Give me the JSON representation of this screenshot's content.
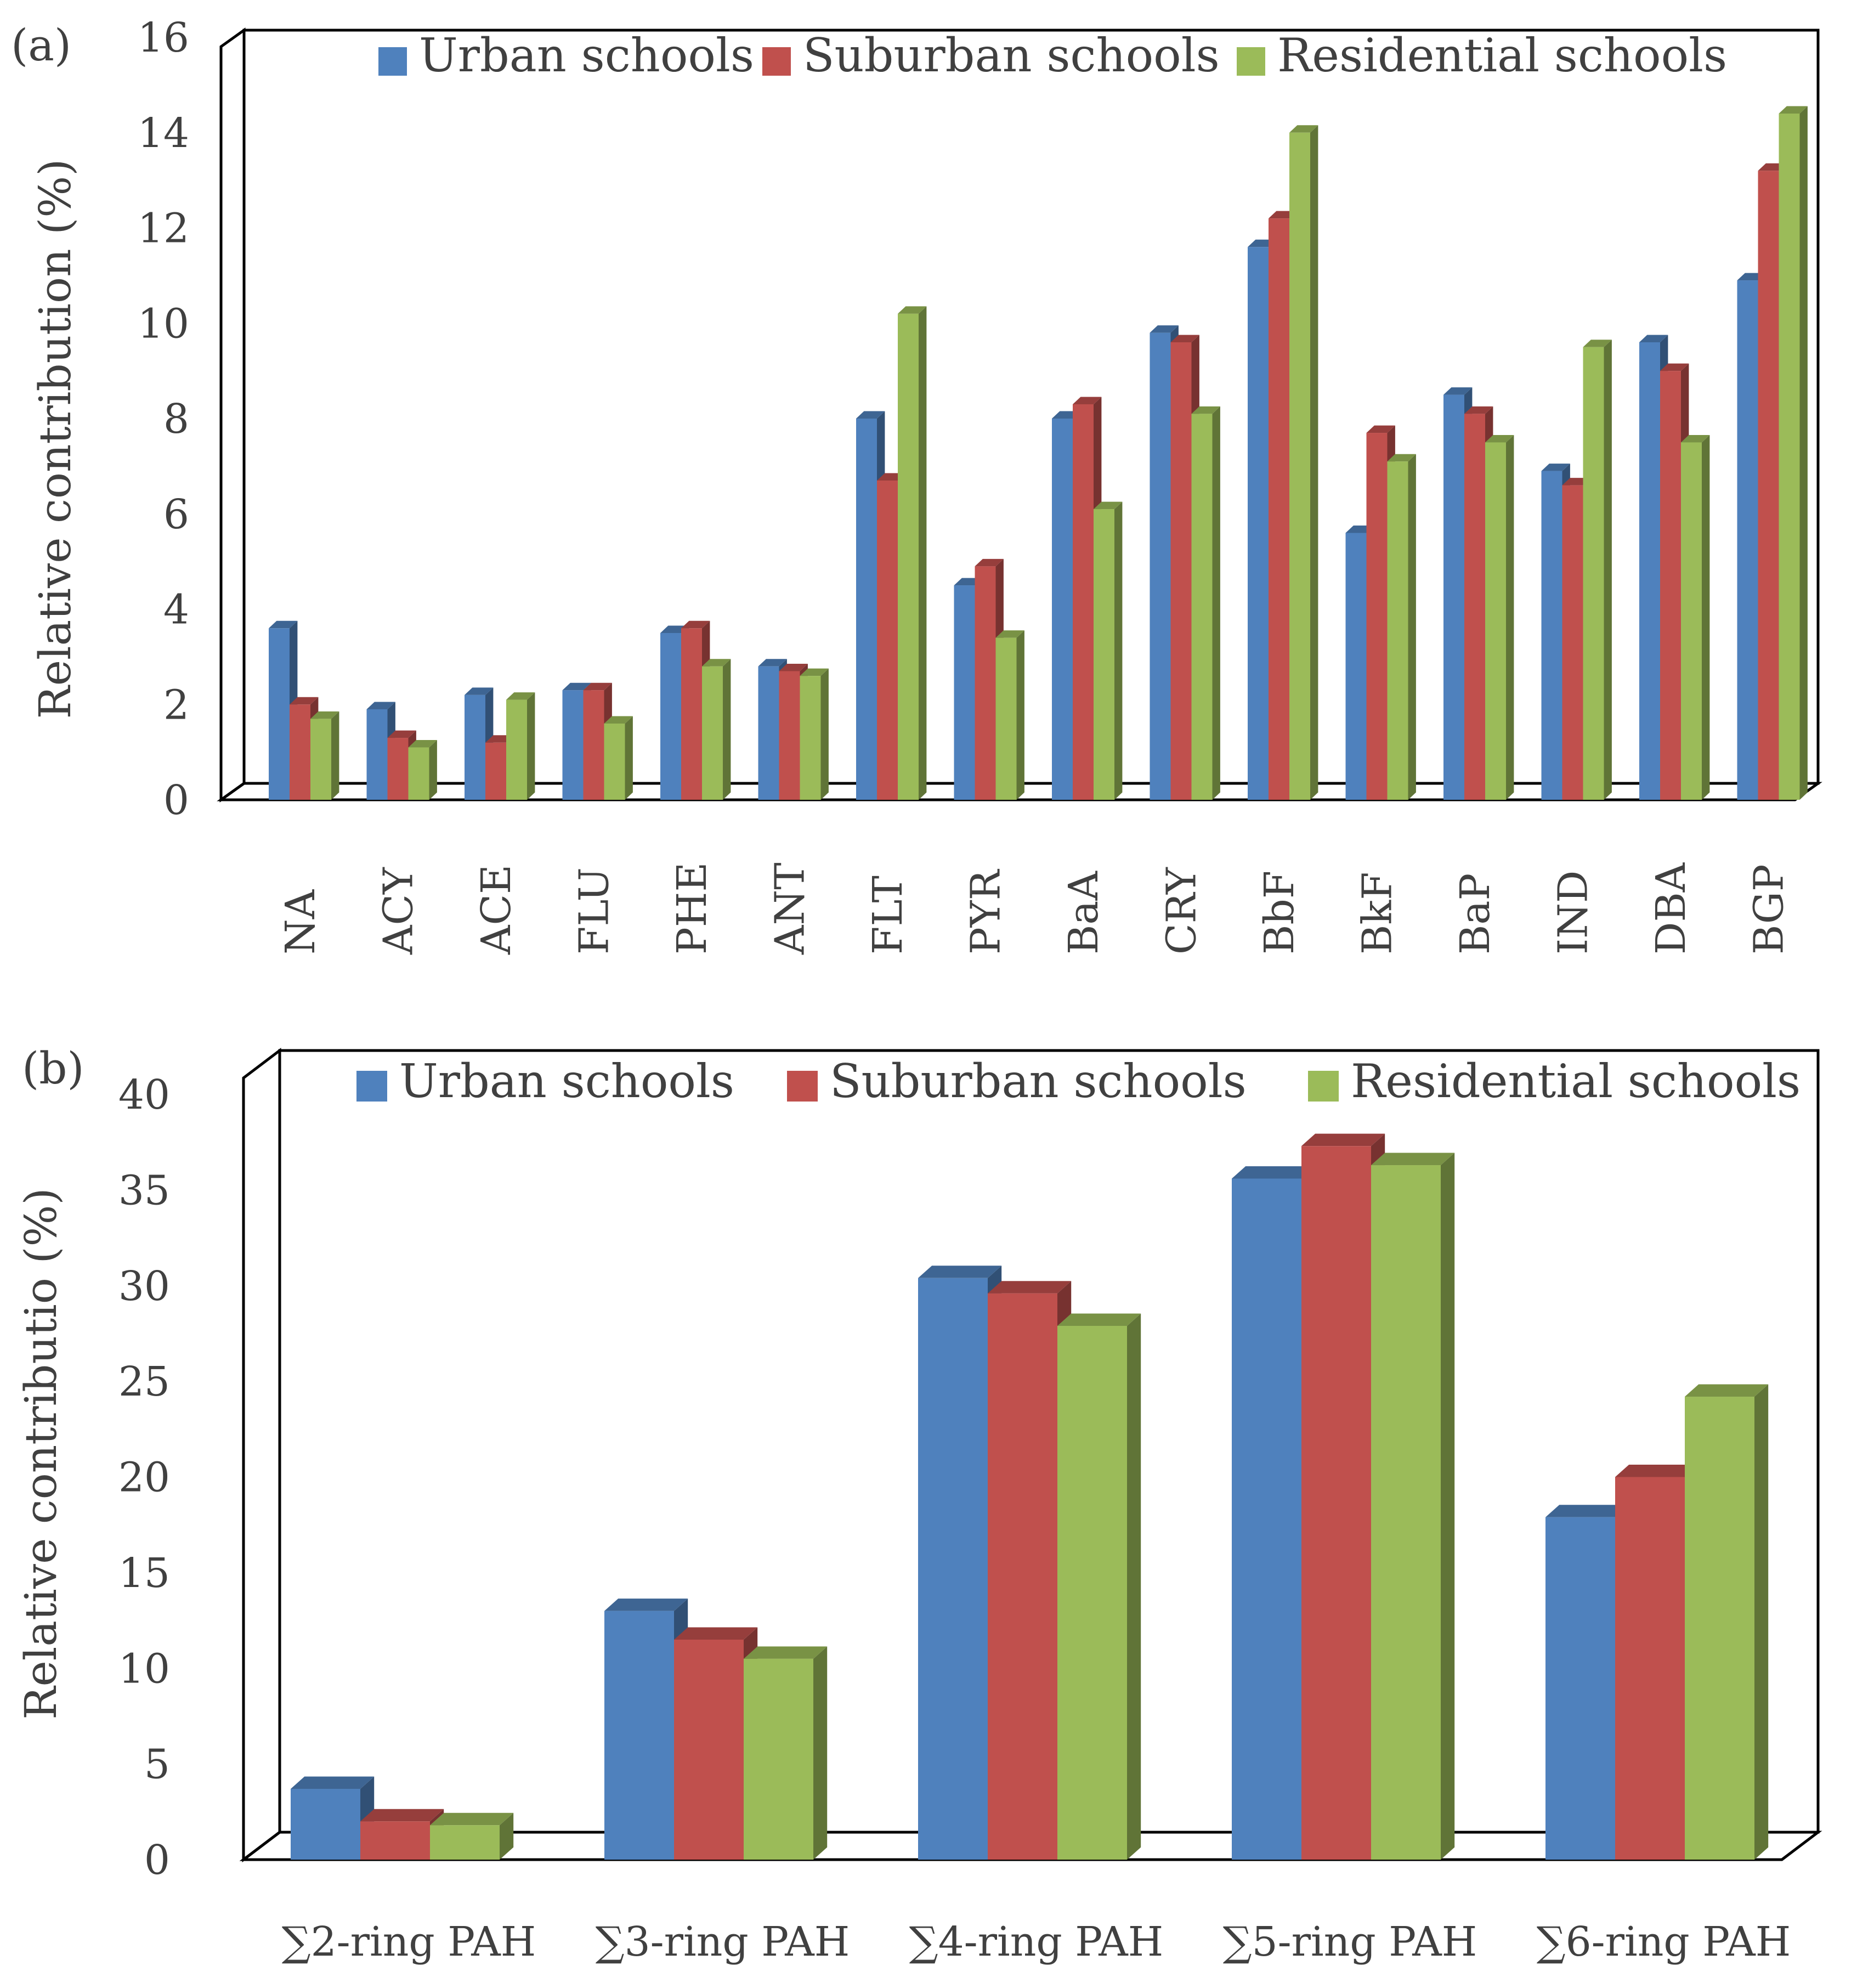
{
  "chart_data": [
    {
      "panel_label": "(a)",
      "type": "bar",
      "style": "3d-clustered",
      "ylabel": "Relative contribution (%)",
      "ylim": [
        0,
        16
      ],
      "yticks": [
        0,
        2,
        4,
        6,
        8,
        10,
        12,
        14,
        16
      ],
      "categories": [
        "NA",
        "ACY",
        "ACE",
        "FLU",
        "PHE",
        "ANT",
        "FLT",
        "PYR",
        "BaA",
        "CRY",
        "BbF",
        "BkF",
        "BaP",
        "IND",
        "DBA",
        "BGP"
      ],
      "legend_position": "top",
      "series": [
        {
          "name": "Urban schools",
          "color": "#4F81BD",
          "values": [
            3.6,
            1.9,
            2.2,
            2.3,
            3.5,
            2.8,
            8.0,
            4.5,
            8.0,
            9.8,
            11.6,
            5.6,
            8.5,
            6.9,
            9.6,
            10.9
          ]
        },
        {
          "name": "Suburban  schools",
          "color": "#C0504D",
          "values": [
            2.0,
            1.3,
            1.2,
            2.3,
            3.6,
            2.7,
            6.7,
            4.9,
            8.3,
            9.6,
            12.2,
            7.7,
            8.1,
            6.6,
            9.0,
            13.2
          ]
        },
        {
          "name": "Residential schools",
          "color": "#9BBB59",
          "values": [
            1.7,
            1.1,
            2.1,
            1.6,
            2.8,
            2.6,
            10.2,
            3.4,
            6.1,
            8.1,
            14.0,
            7.1,
            7.5,
            9.5,
            7.5,
            14.4
          ]
        }
      ]
    },
    {
      "panel_label": "(b)",
      "type": "bar",
      "style": "3d-clustered",
      "ylabel": "Relative contributio (%)",
      "ylim": [
        0,
        40
      ],
      "yticks": [
        0,
        5,
        10,
        15,
        20,
        25,
        30,
        35,
        40
      ],
      "categories": [
        "∑2-ring PAH",
        "∑3-ring PAH",
        "∑4-ring PAH",
        "∑5-ring PAH",
        "∑6-ring PAH"
      ],
      "legend_position": "top",
      "series": [
        {
          "name": "Urban schools",
          "color": "#4F81BD",
          "values": [
            3.7,
            13.0,
            30.4,
            35.6,
            17.9
          ]
        },
        {
          "name": "Suburban  schools",
          "color": "#C0504D",
          "values": [
            2.0,
            11.5,
            29.6,
            37.3,
            20.0
          ]
        },
        {
          "name": "Residential schools",
          "color": "#9BBB59",
          "values": [
            1.8,
            10.5,
            27.9,
            36.3,
            24.2
          ]
        }
      ]
    }
  ]
}
